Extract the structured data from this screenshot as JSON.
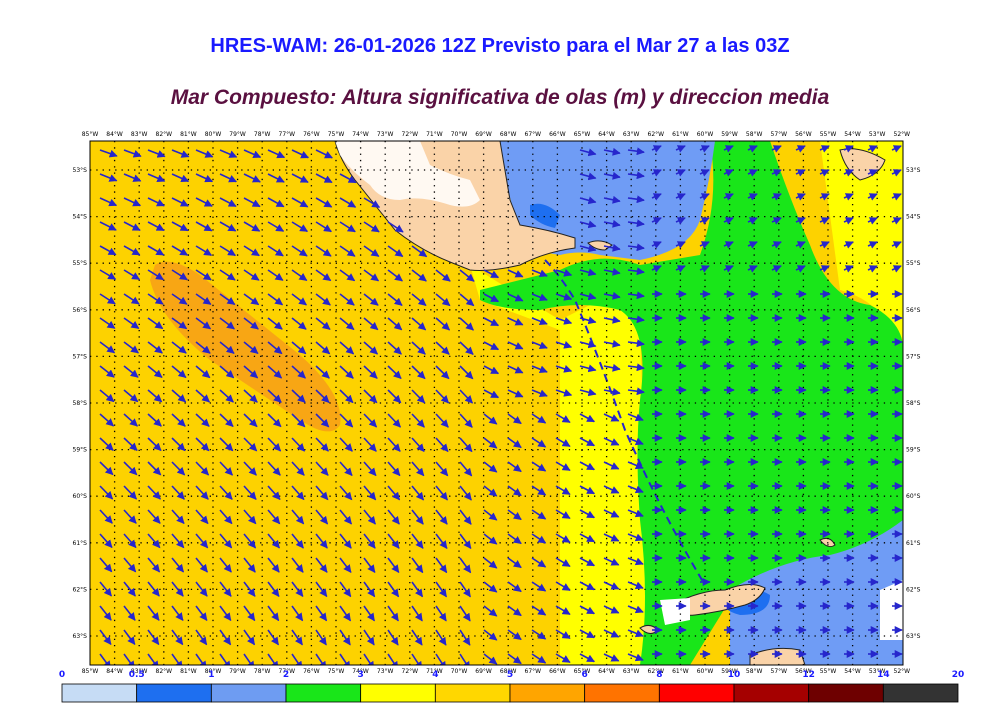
{
  "title": "HRES-WAM: 26-01-2026 12Z Previsto para el Mar 27 a las 03Z",
  "subtitle": "Mar Compuesto: Altura significativa de olas (m) y direccion media",
  "lon_labels": [
    "85°W",
    "84°W",
    "83°W",
    "82°W",
    "81°W",
    "80°W",
    "79°W",
    "78°W",
    "77°W",
    "76°W",
    "75°W",
    "74°W",
    "73°W",
    "72°W",
    "71°W",
    "70°W",
    "69°W",
    "68°W",
    "67°W",
    "66°W",
    "65°W",
    "64°W",
    "63°W",
    "62°W",
    "61°W",
    "60°W",
    "59°W",
    "58°W",
    "57°W",
    "56°W",
    "55°W",
    "54°W",
    "53°W",
    "52°W"
  ],
  "lat_labels": [
    "53°S",
    "54°S",
    "55°S",
    "56°S",
    "57°S",
    "58°S",
    "59°S",
    "60°S",
    "61°S",
    "62°S",
    "63°S"
  ],
  "colorbar": {
    "ticks": [
      "0",
      "0.5",
      "1",
      "2",
      "3",
      "4",
      "5",
      "6",
      "8",
      "10",
      "12",
      "14",
      "20"
    ],
    "colors": [
      "#c6dcf5",
      "#1e6ff0",
      "#6e9cf2",
      "#19e619",
      "#ffff00",
      "#ffd700",
      "#ffa500",
      "#ff7300",
      "#ff0000",
      "#a50000",
      "#6e0000",
      "#333333"
    ]
  },
  "map_colors": {
    "ocean_yellow_dark": "#fdd200",
    "ocean_orange": "#f8a614",
    "ocean_yellow": "#ffff00",
    "ocean_green": "#19e619",
    "ocean_blue": "#6f9cf5",
    "ocean_deep_blue": "#1e6ff0",
    "land": "#fad3a8",
    "arrows": "#2626cc"
  }
}
